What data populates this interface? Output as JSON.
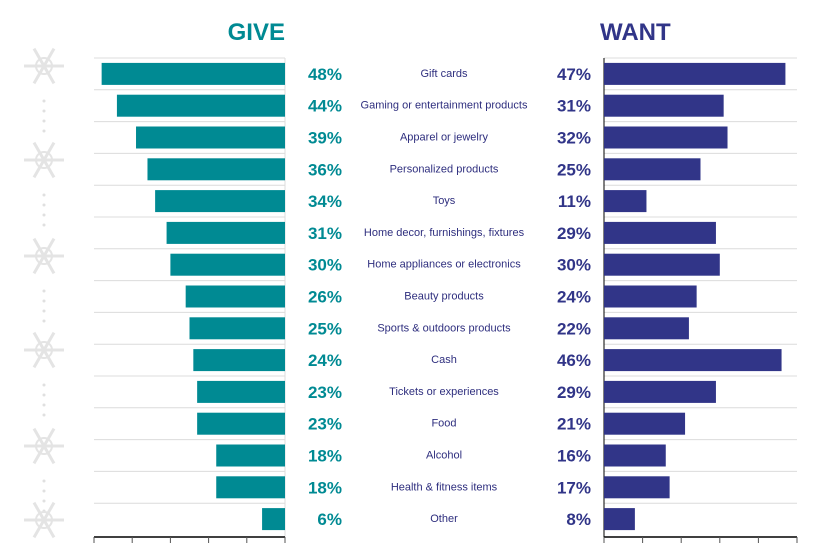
{
  "chart_data": [
    {
      "type": "bar",
      "orientation": "horizontal",
      "title": "GIVE",
      "color": "#008a93",
      "xlim": [
        0,
        50
      ],
      "categories": [
        "Gift cards",
        "Gaming or entertainment products",
        "Apparel or jewelry",
        "Personalized products",
        "Toys",
        "Home decor, furnishings, fixtures",
        "Home appliances or electronics",
        "Beauty products",
        "Sports & outdoors products",
        "Cash",
        "Tickets or experiences",
        "Food",
        "Alcohol",
        "Health & fitness items",
        "Other"
      ],
      "values": [
        48,
        44,
        39,
        36,
        34,
        31,
        30,
        26,
        25,
        24,
        23,
        23,
        18,
        18,
        6
      ],
      "value_suffix": "%"
    },
    {
      "type": "bar",
      "orientation": "horizontal",
      "title": "WANT",
      "color": "#313588",
      "xlim": [
        0,
        50
      ],
      "categories": [
        "Gift cards",
        "Gaming or entertainment products",
        "Apparel or jewelry",
        "Personalized products",
        "Toys",
        "Home decor, furnishings, fixtures",
        "Home appliances or electronics",
        "Beauty products",
        "Sports & outdoors products",
        "Cash",
        "Tickets or experiences",
        "Food",
        "Alcohol",
        "Health & fitness items",
        "Other"
      ],
      "values": [
        47,
        31,
        32,
        25,
        11,
        29,
        30,
        24,
        22,
        46,
        29,
        21,
        16,
        17,
        8
      ],
      "value_suffix": "%"
    }
  ]
}
